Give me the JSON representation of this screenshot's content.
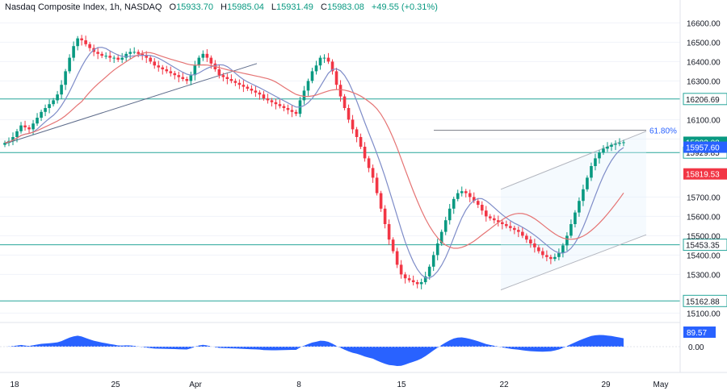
{
  "header": {
    "title": "Nasdaq Composite Index, 1h, NASDAQ",
    "open_label": "O",
    "open": "15933.70",
    "high_label": "H",
    "high": "15985.04",
    "low_label": "L",
    "low": "15931.49",
    "close_label": "C",
    "close": "15983.08",
    "change": "+49.55 (+0.31%)"
  },
  "colors": {
    "up": "#089981",
    "down": "#f23645",
    "level": "#26a69a",
    "ma_fast": "#7e8cc8",
    "ma_slow": "#e57373",
    "osc": "#2962ff",
    "trend": "#5d6b8a"
  },
  "chart_data": {
    "type": "candlestick",
    "y_ticks": [
      "16600.00",
      "16500.00",
      "16400.00",
      "16300.00",
      "16100.00",
      "16000.00",
      "15700.00",
      "15600.00",
      "15500.00",
      "15400.00",
      "15300.00",
      "15100.00"
    ],
    "y_tick_values": [
      16600,
      16500,
      16400,
      16300,
      16100,
      16000,
      15700,
      15600,
      15500,
      15400,
      15300,
      15100
    ],
    "ylim": [
      15060,
      16660
    ],
    "x_ticks": [
      "18",
      "25",
      "Apr",
      "8",
      "15",
      "22",
      "29",
      "May"
    ],
    "horizontal_levels": [
      {
        "label": "16206.69",
        "value": 16206.69
      },
      {
        "label": "15929.85",
        "value": 15929.85
      },
      {
        "label": "15453.35",
        "value": 15453.35
      },
      {
        "label": "15162.88",
        "value": 15162.88
      }
    ],
    "price_tags": [
      {
        "label": "15983.08",
        "value": 15983.08,
        "color": "#089981"
      },
      {
        "label": "15957.60",
        "value": 15957.6,
        "color": "#2962ff"
      },
      {
        "label": "15819.53",
        "value": 15819.53,
        "color": "#f23645"
      }
    ],
    "fib_label": "61.80%",
    "fib_value": 16045,
    "oscillator": {
      "ticks": [
        "0.00"
      ],
      "last_label": "89.57",
      "last": 89.57
    },
    "closes": [
      15980,
      15990,
      16010,
      16040,
      16070,
      16060,
      16050,
      16080,
      16110,
      16140,
      16160,
      16180,
      16200,
      16230,
      16280,
      16350,
      16420,
      16480,
      16520,
      16510,
      16490,
      16470,
      16450,
      16440,
      16430,
      16430,
      16420,
      16420,
      16410,
      16420,
      16440,
      16450,
      16450,
      16440,
      16430,
      16420,
      16400,
      16380,
      16370,
      16360,
      16350,
      16340,
      16330,
      16320,
      16310,
      16300,
      16330,
      16380,
      16420,
      16440,
      16420,
      16390,
      16360,
      16330,
      16320,
      16310,
      16300,
      16290,
      16280,
      16270,
      16260,
      16250,
      16240,
      16230,
      16210,
      16200,
      16190,
      16180,
      16170,
      16160,
      16150,
      16140,
      16130,
      16200,
      16250,
      16300,
      16350,
      16380,
      16420,
      16420,
      16400,
      16350,
      16280,
      16220,
      16160,
      16100,
      16050,
      16010,
      15960,
      15900,
      15850,
      15800,
      15720,
      15640,
      15560,
      15480,
      15420,
      15350,
      15300,
      15280,
      15270,
      15260,
      15250,
      15260,
      15290,
      15340,
      15400,
      15460,
      15520,
      15580,
      15640,
      15690,
      15720,
      15730,
      15720,
      15700,
      15680,
      15660,
      15630,
      15600,
      15590,
      15580,
      15570,
      15560,
      15550,
      15540,
      15530,
      15520,
      15500,
      15480,
      15460,
      15440,
      15420,
      15400,
      15390,
      15380,
      15390,
      15410,
      15450,
      15500,
      15560,
      15620,
      15680,
      15740,
      15800,
      15860,
      15900,
      15930,
      15950,
      15960,
      15970,
      15975,
      15980,
      15983
    ]
  }
}
